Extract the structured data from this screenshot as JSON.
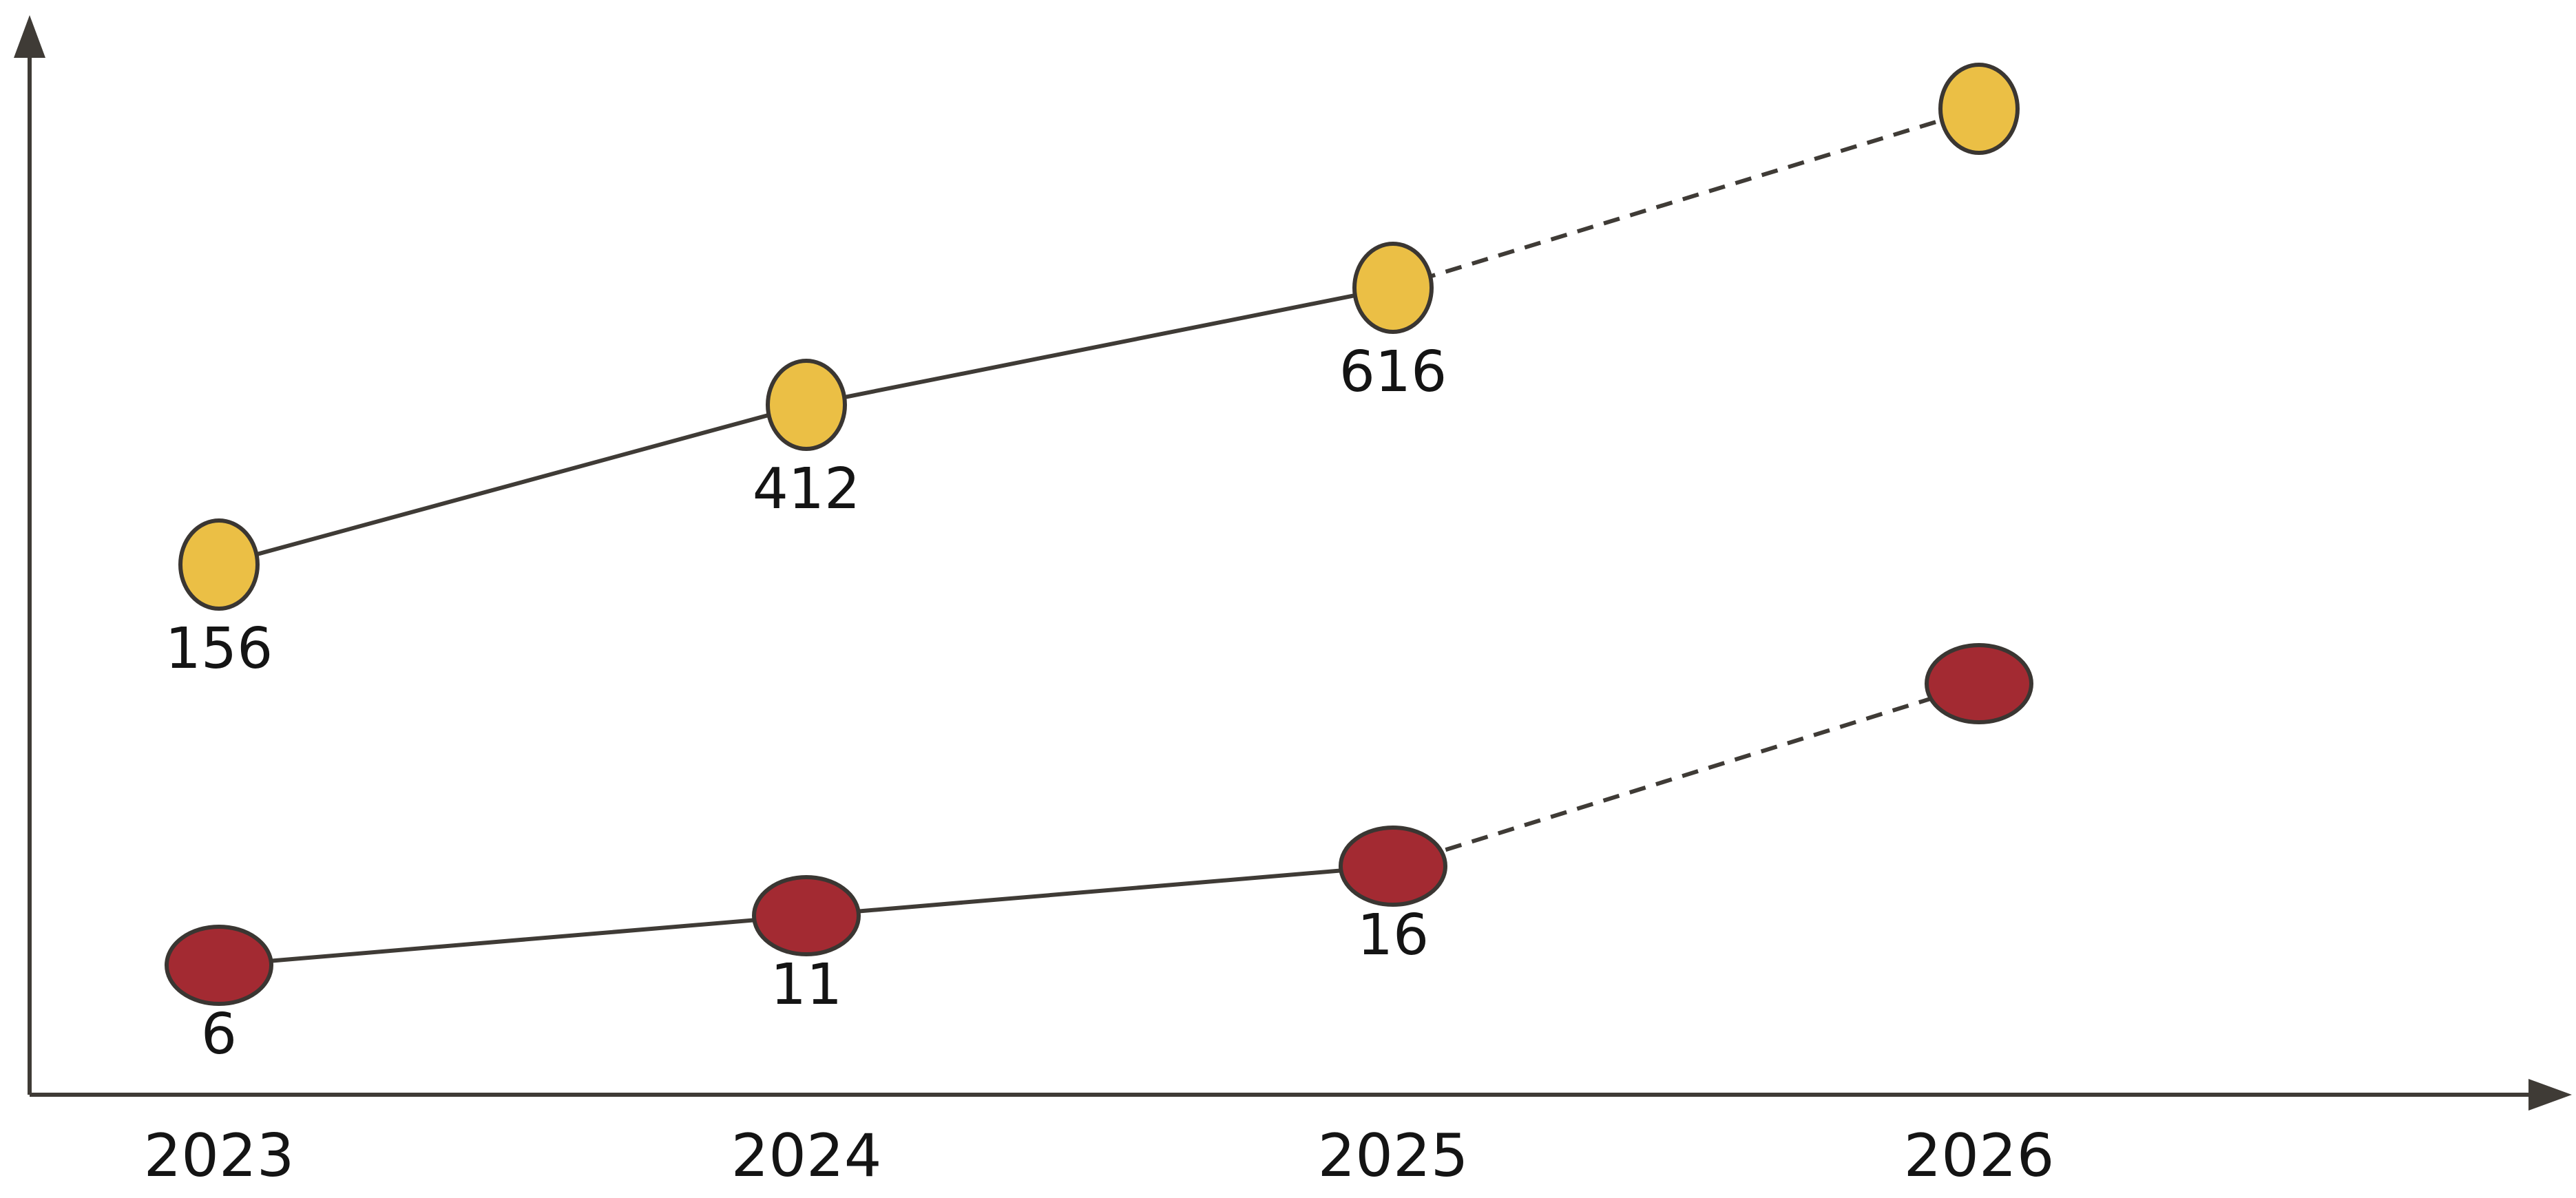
{
  "chart_data": {
    "type": "line",
    "title": "",
    "xlabel": "",
    "ylabel": "",
    "categories": [
      "2023",
      "2024",
      "2025",
      "2026"
    ],
    "grid": false,
    "legend": "none",
    "series": [
      {
        "values": [
          156,
          412,
          616,
          null
        ],
        "labels": [
          "156",
          "412",
          "616",
          ""
        ],
        "color": "#EBBF45",
        "projected_from": "2025",
        "projected_to": "2026"
      },
      {
        "values": [
          6,
          11,
          16,
          null
        ],
        "labels": [
          "6",
          "11",
          "16",
          ""
        ],
        "color": "#A32A32",
        "projected_from": "2025",
        "projected_to": "2026"
      }
    ]
  },
  "colors": {
    "axis": "#3F3B36",
    "text": "#141414"
  }
}
